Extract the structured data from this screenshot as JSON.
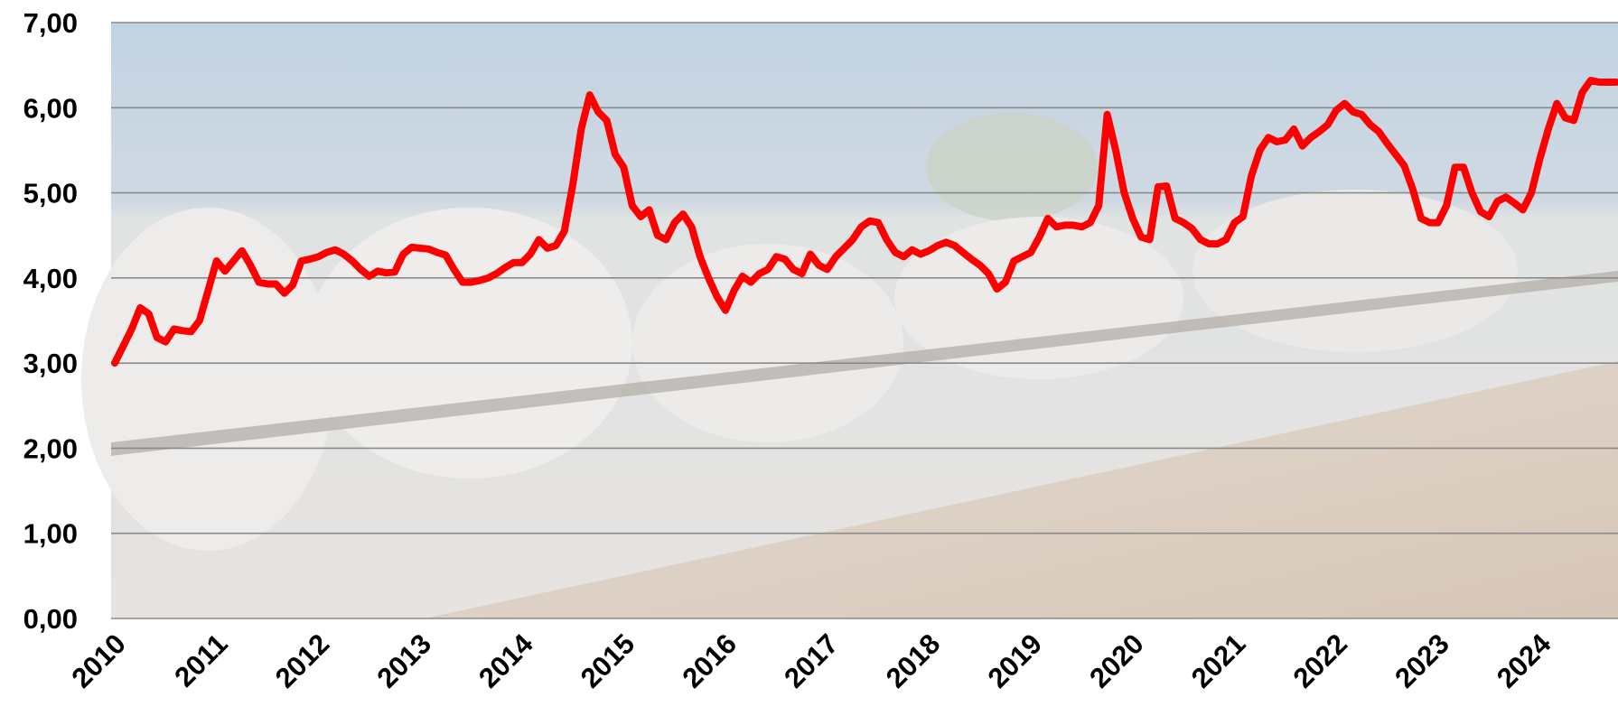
{
  "chart_data": {
    "type": "line",
    "categories": [
      "2010",
      null,
      null,
      null,
      null,
      null,
      null,
      null,
      null,
      null,
      null,
      null,
      "2011",
      null,
      null,
      null,
      null,
      null,
      null,
      null,
      null,
      null,
      null,
      null,
      "2012",
      null,
      null,
      null,
      null,
      null,
      null,
      null,
      null,
      null,
      null,
      null,
      "2013",
      null,
      null,
      null,
      null,
      null,
      null,
      null,
      null,
      null,
      null,
      null,
      "2014",
      null,
      null,
      null,
      null,
      null,
      null,
      null,
      null,
      null,
      null,
      null,
      "2015",
      null,
      null,
      null,
      null,
      null,
      null,
      null,
      null,
      null,
      null,
      null,
      "2016",
      null,
      null,
      null,
      null,
      null,
      null,
      null,
      null,
      null,
      null,
      null,
      "2017",
      null,
      null,
      null,
      null,
      null,
      null,
      null,
      null,
      null,
      null,
      null,
      "2018",
      null,
      null,
      null,
      null,
      null,
      null,
      null,
      null,
      null,
      null,
      null,
      "2019",
      null,
      null,
      null,
      null,
      null,
      null,
      null,
      null,
      null,
      null,
      null,
      "2020",
      null,
      null,
      null,
      null,
      null,
      null,
      null,
      null,
      null,
      null,
      null,
      "2021",
      null,
      null,
      null,
      null,
      null,
      null,
      null,
      null,
      null,
      null,
      null,
      "2022",
      null,
      null,
      null,
      null,
      null,
      null,
      null,
      null,
      null,
      null,
      null,
      "2023",
      null,
      null,
      null,
      null,
      null,
      null,
      null,
      null,
      null,
      null,
      null,
      "2024",
      null,
      null,
      null,
      null,
      null,
      null,
      null,
      null,
      null
    ],
    "values": [
      3.0,
      3.2,
      3.4,
      3.65,
      3.58,
      3.3,
      3.25,
      3.4,
      3.38,
      3.37,
      3.5,
      3.85,
      4.2,
      4.08,
      4.2,
      4.32,
      4.15,
      3.95,
      3.93,
      3.93,
      3.82,
      3.92,
      4.2,
      4.22,
      4.25,
      4.3,
      4.33,
      4.28,
      4.2,
      4.1,
      4.02,
      4.08,
      4.06,
      4.07,
      4.28,
      4.36,
      4.35,
      4.34,
      4.3,
      4.27,
      4.1,
      3.95,
      3.95,
      3.97,
      4.0,
      4.05,
      4.12,
      4.18,
      4.18,
      4.28,
      4.45,
      4.35,
      4.38,
      4.55,
      5.1,
      5.75,
      6.15,
      5.95,
      5.85,
      5.45,
      5.3,
      4.85,
      4.72,
      4.8,
      4.5,
      4.45,
      4.65,
      4.75,
      4.6,
      4.25,
      4.0,
      3.78,
      3.62,
      3.85,
      4.02,
      3.95,
      4.05,
      4.1,
      4.25,
      4.22,
      4.1,
      4.05,
      4.28,
      4.15,
      4.1,
      4.25,
      4.35,
      4.45,
      4.6,
      4.67,
      4.65,
      4.45,
      4.3,
      4.25,
      4.33,
      4.28,
      4.32,
      4.38,
      4.42,
      4.38,
      4.3,
      4.22,
      4.15,
      4.05,
      3.87,
      3.95,
      4.2,
      4.25,
      4.3,
      4.48,
      4.7,
      4.6,
      4.62,
      4.62,
      4.6,
      4.65,
      4.85,
      5.92,
      5.5,
      5.0,
      4.7,
      4.48,
      4.45,
      5.07,
      5.08,
      4.7,
      4.65,
      4.58,
      4.45,
      4.4,
      4.4,
      4.45,
      4.65,
      4.72,
      5.2,
      5.5,
      5.65,
      5.6,
      5.62,
      5.75,
      5.55,
      5.65,
      5.72,
      5.8,
      5.97,
      6.05,
      5.95,
      5.92,
      5.8,
      5.72,
      5.58,
      5.45,
      5.32,
      5.05,
      4.7,
      4.65,
      4.65,
      4.85,
      5.3,
      5.3,
      5.0,
      4.78,
      4.72,
      4.9,
      4.95,
      4.88,
      4.8,
      5.0,
      5.4,
      5.75,
      6.05,
      5.88,
      5.85,
      6.18,
      6.32,
      6.3,
      6.3,
      6.3
    ],
    "color": "#ff0000",
    "ylim": [
      0,
      7
    ],
    "yticks": [
      {
        "value": 0,
        "label": "0,00"
      },
      {
        "value": 1,
        "label": "1,00"
      },
      {
        "value": 2,
        "label": "2,00"
      },
      {
        "value": 3,
        "label": "3,00"
      },
      {
        "value": 4,
        "label": "4,00"
      },
      {
        "value": 5,
        "label": "5,00"
      },
      {
        "value": 6,
        "label": "6,00"
      },
      {
        "value": 7,
        "label": "7,00"
      }
    ],
    "grid": true
  }
}
